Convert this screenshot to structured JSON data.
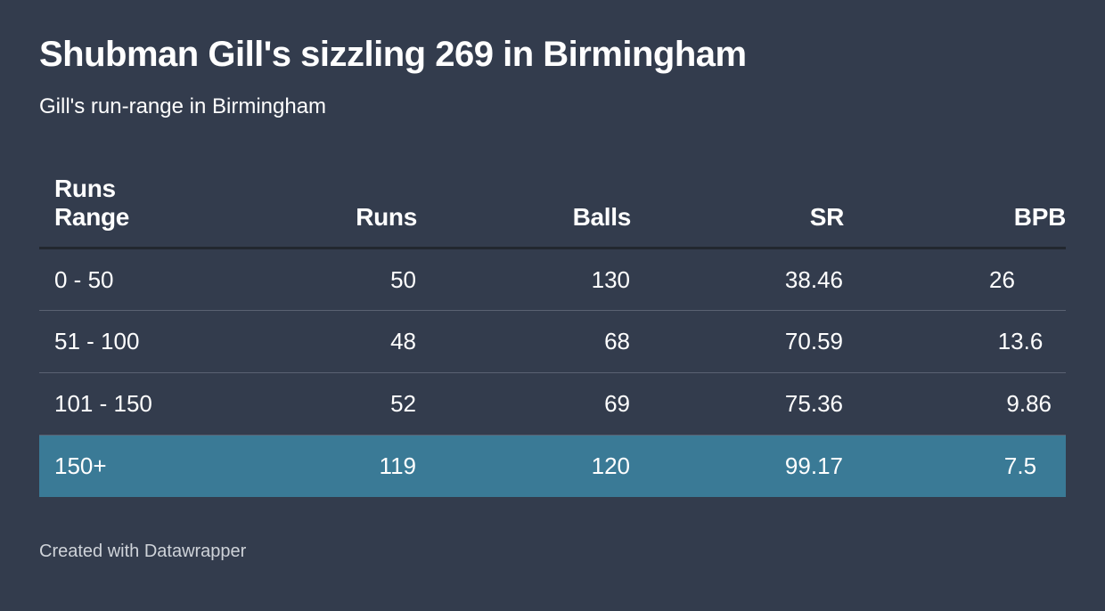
{
  "title": "Shubman Gill's sizzling 269 in Birmingham",
  "subtitle": "Gill's run-range in Birmingham",
  "footer": "Created with Datawrapper",
  "colors": {
    "background": "#333c4d",
    "highlight_row": "#3a7a96",
    "text": "#ffffff"
  },
  "chart_data": {
    "type": "table",
    "columns": [
      "Runs Range",
      "Runs",
      "Balls",
      "SR",
      "BPB"
    ],
    "rows": [
      [
        "0 - 50",
        "50",
        "130",
        "38.46",
        "26"
      ],
      [
        "51 - 100",
        "48",
        "68",
        "70.59",
        "13.6"
      ],
      [
        "101 - 150",
        "52",
        "69",
        "75.36",
        "9.86"
      ],
      [
        "150+",
        "119",
        "120",
        "99.17",
        "7.5"
      ]
    ],
    "highlighted_row": 3
  }
}
